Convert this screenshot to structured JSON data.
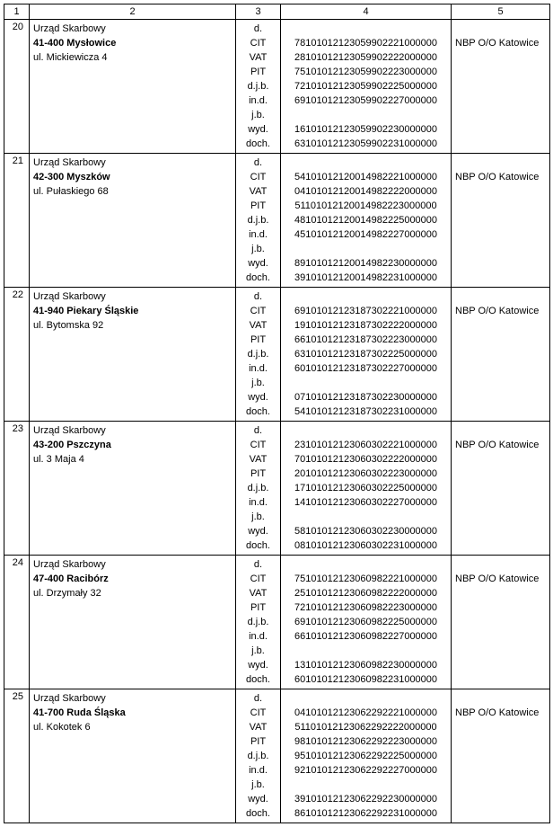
{
  "headers": [
    "1",
    "2",
    "3",
    "4",
    "5"
  ],
  "bank_label": "NBP O/O Katowice",
  "code_labels": [
    "d.",
    "CIT",
    "VAT",
    "PIT",
    "d.j.b.",
    "in.d.",
    "j.b.",
    "wyd.",
    "doch."
  ],
  "rows": [
    {
      "num": "20",
      "office_lines": [
        "Urząd Skarbowy",
        "41-400 Mysłowice",
        "ul. Mickiewicza 4"
      ],
      "accounts": [
        "",
        "78101012123059902221000000",
        "28101012123059902222000000",
        "75101012123059902223000000",
        "72101012123059902225000000",
        "69101012123059902227000000",
        "",
        "16101012123059902230000000",
        "63101012123059902231000000"
      ]
    },
    {
      "num": "21",
      "office_lines": [
        "Urząd Skarbowy",
        "42-300 Myszków",
        "ul. Pułaskiego 68"
      ],
      "accounts": [
        "",
        "54101012120014982221000000",
        "04101012120014982222000000",
        "51101012120014982223000000",
        "48101012120014982225000000",
        "45101012120014982227000000",
        "",
        "89101012120014982230000000",
        "39101012120014982231000000"
      ]
    },
    {
      "num": "22",
      "office_lines": [
        "Urząd Skarbowy",
        "41-940 Piekary Śląskie",
        "ul. Bytomska 92"
      ],
      "accounts": [
        "",
        "69101012123187302221000000",
        "19101012123187302222000000",
        "66101012123187302223000000",
        "63101012123187302225000000",
        "60101012123187302227000000",
        "",
        "07101012123187302230000000",
        "54101012123187302231000000"
      ]
    },
    {
      "num": "23",
      "office_lines": [
        "Urząd Skarbowy",
        "43-200 Pszczyna",
        "ul. 3 Maja 4"
      ],
      "accounts": [
        "",
        "23101012123060302221000000",
        "70101012123060302222000000",
        "20101012123060302223000000",
        "17101012123060302225000000",
        "14101012123060302227000000",
        "",
        "58101012123060302230000000",
        "08101012123060302231000000"
      ]
    },
    {
      "num": "24",
      "office_lines": [
        "Urząd Skarbowy",
        "47-400 Racibórz",
        "ul. Drzymały 32"
      ],
      "accounts": [
        "",
        "75101012123060982221000000",
        "25101012123060982222000000",
        "72101012123060982223000000",
        "69101012123060982225000000",
        "66101012123060982227000000",
        "",
        "13101012123060982230000000",
        "60101012123060982231000000"
      ]
    },
    {
      "num": "25",
      "office_lines": [
        "Urząd Skarbowy",
        "41-700 Ruda Śląska",
        "ul. Kokotek 6"
      ],
      "accounts": [
        "",
        "04101012123062292221000000",
        "51101012123062292222000000",
        "98101012123062292223000000",
        "95101012123062292225000000",
        "92101012123062292227000000",
        "",
        "39101012123062292230000000",
        "86101012123062292231000000"
      ]
    }
  ]
}
